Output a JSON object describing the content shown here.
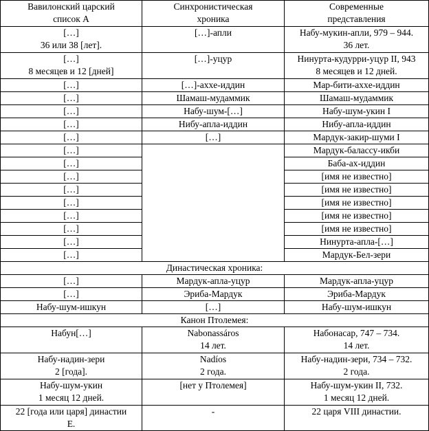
{
  "headers": [
    "Вавилонский царский список А",
    "Синхронистическая хроника",
    "Современные представления"
  ],
  "headers_lines": [
    [
      "Вавилонский царский",
      "список А"
    ],
    [
      "Синхронистическая",
      "хроника"
    ],
    [
      "Современные",
      "представления"
    ]
  ],
  "top_rows": [
    {
      "a": [
        "[…]",
        "36 или 38 [лет]."
      ],
      "b": [
        "[…]-апли"
      ],
      "c": [
        "Набу-мукин-апли, 979 – 944.",
        "36 лет."
      ]
    },
    {
      "a": [
        "[…]",
        "8 месяцев и 12 [дней]"
      ],
      "b": [
        "[…]-уцур"
      ],
      "c": [
        "Нинурта-кудурри-уцур II, 943",
        "8 месяцев и 12 дней."
      ]
    }
  ],
  "single_rows": [
    {
      "a": "[…]",
      "b": "[…]-ахxе-иддин",
      "c": "Мар-бити-ахxе-иддин"
    },
    {
      "a": "[…]",
      "b": "Шамаш-мудаммик",
      "c": "Шамаш-мудаммик"
    },
    {
      "a": "[…]",
      "b": "Набу-шум-[…]",
      "c": "Набу-шум-укин I"
    },
    {
      "a": "[…]",
      "b": "Нибу-апла-иддин",
      "c": "Нибу-апла-иддин"
    },
    {
      "a": "[…]",
      "b": "[…]",
      "c": "Мардук-закир-шуми I"
    },
    {
      "a": "[…]",
      "c": "Мардук-балассу-икби"
    },
    {
      "a": "[…]",
      "c": "Баба-ах-иддин"
    },
    {
      "a": "[…]",
      "c": "[имя не известно]"
    },
    {
      "a": "[…]",
      "c": "[имя не известно]"
    },
    {
      "a": "[…]",
      "c": "[имя не известно]"
    },
    {
      "a": "[…]",
      "c": "[имя не известно]"
    },
    {
      "a": "[…]",
      "c": "[имя не известно]"
    },
    {
      "a": "[…]",
      "c": "Нинурта-апла-[…]"
    },
    {
      "a": "[…]",
      "c": "Мардук-Бел-зери"
    }
  ],
  "dynastic": {
    "title": "Династическая хроника:",
    "rows": [
      {
        "a": "[…]",
        "b": "Мардук-апла-уцур",
        "c": "Мардук-апла-уцур"
      },
      {
        "a": "[…]",
        "b": "Эриба-Мардук",
        "c": "Эриба-Мардук"
      },
      {
        "a": "Набу-шум-ишкун",
        "b": "[…]",
        "c": "Набу-шум-ишкун"
      }
    ]
  },
  "ptolemy": {
    "title": "Канон Птолемея:",
    "rows": [
      {
        "a": [
          "Набун[…]"
        ],
        "b": [
          "Nabonassáros",
          "14 лет."
        ],
        "c": [
          "Набонасар, 747 – 734.",
          "14 лет."
        ]
      },
      {
        "a": [
          "Набу-надин-зери",
          "2 [года]."
        ],
        "b": [
          "Nadíos",
          "2 года."
        ],
        "c": [
          "Набу-надин-зери, 734 – 732.",
          "2 года."
        ]
      },
      {
        "a": [
          "Набу-шум-укин",
          "1 месяц 12 дней."
        ],
        "b": [
          "[нет у Птолемея]"
        ],
        "c": [
          "Набу-шум-укин II, 732.",
          "1 месяц 12 дней."
        ]
      },
      {
        "a": [
          "22 [года или царя] династии",
          "Е."
        ],
        "b": [
          "-"
        ],
        "c": [
          "22 царя VIII династии."
        ]
      }
    ]
  }
}
